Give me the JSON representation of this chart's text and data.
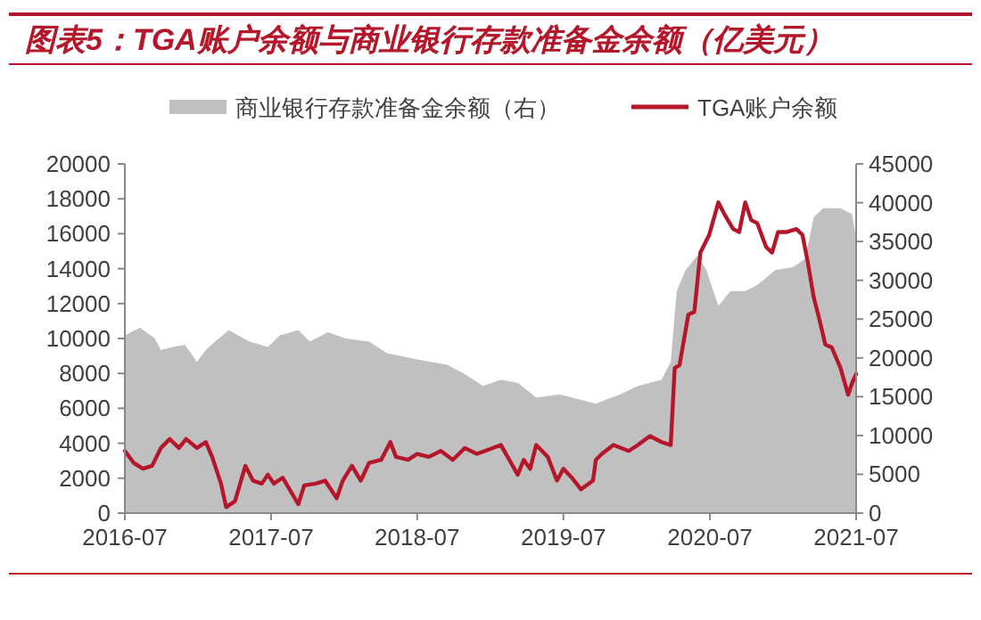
{
  "chart_data": {
    "type": "line",
    "title": "图表5：TGA账户余额与商业银行存款准备金余额（亿美元）",
    "xlim": [
      "2016-07-01",
      "2021-07-01"
    ],
    "xticks": [
      "2016-07",
      "2017-07",
      "2018-07",
      "2019-07",
      "2020-07",
      "2021-07"
    ],
    "ylim": [
      0,
      20000
    ],
    "yticks": [
      0,
      2000,
      4000,
      6000,
      8000,
      10000,
      12000,
      14000,
      16000,
      18000,
      20000
    ],
    "y2lim": [
      0,
      45000
    ],
    "y2ticks": [
      0,
      5000,
      10000,
      15000,
      20000,
      25000,
      30000,
      35000,
      40000,
      45000
    ],
    "legend": "top",
    "series": [
      {
        "name": "商业银行存款准备金余额（右）",
        "type": "area",
        "axis": "y2",
        "color": "#c0c0c0",
        "x": [
          "2016-07-01",
          "2016-08-08",
          "2016-09-14",
          "2016-09-29",
          "2016-10-29",
          "2016-11-28",
          "2016-12-28",
          "2017-01-19",
          "2017-02-11",
          "2017-03-18",
          "2017-04-10",
          "2017-05-09",
          "2017-06-23",
          "2017-07-23",
          "2017-09-07",
          "2017-10-06",
          "2017-11-20",
          "2018-01-04",
          "2018-03-03",
          "2018-04-17",
          "2018-07-01",
          "2018-09-14",
          "2018-10-28",
          "2018-12-12",
          "2019-01-26",
          "2019-03-09",
          "2019-04-24",
          "2019-06-22",
          "2019-09-20",
          "2019-11-19",
          "2020-01-03",
          "2020-03-02",
          "2020-03-25",
          "2020-04-09",
          "2020-05-01",
          "2020-05-31",
          "2020-06-22",
          "2020-07-22",
          "2020-08-21",
          "2020-09-27",
          "2020-10-27",
          "2020-12-11",
          "2021-01-25",
          "2021-02-24",
          "2021-03-17",
          "2021-04-09",
          "2021-05-23",
          "2021-06-21",
          "2021-07-01"
        ],
        "values": [
          22900,
          23900,
          22500,
          21000,
          21400,
          21700,
          19500,
          21000,
          22100,
          23600,
          22900,
          22100,
          21400,
          22900,
          23600,
          22100,
          23300,
          22500,
          22100,
          20600,
          19800,
          19100,
          17900,
          16400,
          17200,
          16800,
          14900,
          15300,
          14100,
          15300,
          16400,
          17200,
          19500,
          28600,
          31300,
          33200,
          31300,
          26700,
          28600,
          28600,
          29400,
          31300,
          31700,
          32800,
          38100,
          39300,
          39300,
          38500,
          35500
        ]
      },
      {
        "name": "TGA账户余额",
        "color": "#b5172a",
        "x": [
          "2016-07-01",
          "2016-07-23",
          "2016-08-15",
          "2016-09-07",
          "2016-09-29",
          "2016-10-21",
          "2016-11-13",
          "2016-12-01",
          "2016-12-28",
          "2017-01-19",
          "2017-02-04",
          "2017-02-26",
          "2017-03-11",
          "2017-04-02",
          "2017-04-17",
          "2017-04-28",
          "2017-05-17",
          "2017-06-08",
          "2017-06-23",
          "2017-07-08",
          "2017-07-30",
          "2017-09-07",
          "2017-09-22",
          "2017-10-21",
          "2017-11-13",
          "2017-12-12",
          "2017-12-27",
          "2018-01-19",
          "2018-02-10",
          "2018-03-03",
          "2018-04-02",
          "2018-04-25",
          "2018-05-09",
          "2018-06-08",
          "2018-07-01",
          "2018-07-30",
          "2018-08-29",
          "2018-09-28",
          "2018-10-28",
          "2018-11-27",
          "2019-01-26",
          "2019-03-09",
          "2019-03-24",
          "2019-04-09",
          "2019-04-24",
          "2019-05-23",
          "2019-06-15",
          "2019-07-01",
          "2019-07-22",
          "2019-08-14",
          "2019-09-13",
          "2019-09-20",
          "2019-10-05",
          "2019-11-03",
          "2019-12-11",
          "2020-01-03",
          "2020-02-02",
          "2020-03-02",
          "2020-03-25",
          "2020-04-04",
          "2020-04-16",
          "2020-05-08",
          "2020-05-23",
          "2020-06-07",
          "2020-06-29",
          "2020-07-22",
          "2020-08-06",
          "2020-08-28",
          "2020-09-12",
          "2020-09-27",
          "2020-10-12",
          "2020-10-27",
          "2020-11-18",
          "2020-12-03",
          "2020-12-18",
          "2021-01-09",
          "2021-02-02",
          "2021-02-17",
          "2021-03-02",
          "2021-03-17",
          "2021-04-01",
          "2021-04-15",
          "2021-05-01",
          "2021-05-23",
          "2021-06-11",
          "2021-06-21",
          "2021-07-01"
        ],
        "values": [
          3560,
          2880,
          2540,
          2710,
          3730,
          4240,
          3730,
          4240,
          3730,
          4070,
          3220,
          1690,
          340,
          680,
          1860,
          2710,
          1860,
          1690,
          2200,
          1690,
          2030,
          510,
          1590,
          1690,
          1860,
          850,
          1860,
          2710,
          1860,
          2880,
          3050,
          4070,
          3220,
          3050,
          3390,
          3220,
          3560,
          3050,
          3730,
          3390,
          3900,
          2200,
          3050,
          2540,
          3900,
          3220,
          1860,
          2540,
          2030,
          1360,
          1860,
          3050,
          3390,
          3900,
          3560,
          3900,
          4410,
          4070,
          3900,
          8310,
          8480,
          11360,
          11530,
          14920,
          15930,
          17800,
          17120,
          16270,
          16100,
          17800,
          16780,
          16610,
          15250,
          14920,
          16100,
          16100,
          16270,
          15930,
          14410,
          12370,
          11020,
          9660,
          9490,
          8310,
          6780,
          7460,
          7970
        ]
      }
    ]
  }
}
